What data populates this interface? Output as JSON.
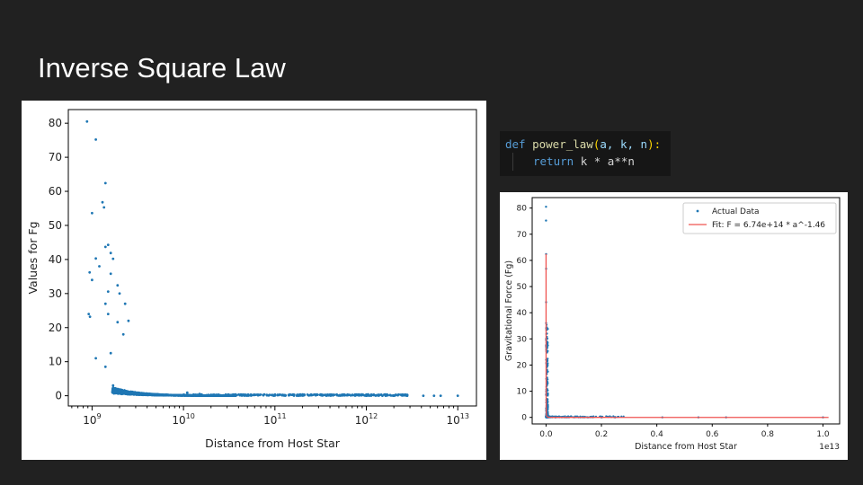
{
  "slide": {
    "title": "Inverse Square Law"
  },
  "code": {
    "def_kw": "def",
    "func_name": "power_law",
    "open_paren": "(",
    "params": "a, k, n",
    "close_colon": "):",
    "return_kw": "return",
    "return_expr": "k * a**n"
  },
  "chart_data": [
    {
      "type": "scatter",
      "xscale": "log",
      "xlabel": "Distance from Host Star",
      "ylabel": "Values for Fg",
      "xlim": [
        550000000.0,
        16000000000000.0
      ],
      "ylim": [
        -3,
        84
      ],
      "xticks": [
        {
          "value": 1000000000.0,
          "base": "10",
          "exp": "9"
        },
        {
          "value": 10000000000.0,
          "base": "10",
          "exp": "10"
        },
        {
          "value": 100000000000.0,
          "base": "10",
          "exp": "11"
        },
        {
          "value": 1000000000000.0,
          "base": "10",
          "exp": "12"
        },
        {
          "value": 10000000000000.0,
          "base": "10",
          "exp": "13"
        }
      ],
      "yticks": [
        "0",
        "10",
        "20",
        "30",
        "40",
        "50",
        "60",
        "70",
        "80"
      ],
      "color": "#1f77b4",
      "points": [
        [
          880000000.0,
          80.5
        ],
        [
          1100000000.0,
          75.2
        ],
        [
          1400000000.0,
          62.4
        ],
        [
          1300000000.0,
          56.8
        ],
        [
          1350000000.0,
          55.3
        ],
        [
          1000000000.0,
          53.6
        ],
        [
          1500000000.0,
          44.3
        ],
        [
          1400000000.0,
          43.7
        ],
        [
          1600000000.0,
          41.9
        ],
        [
          1100000000.0,
          40.3
        ],
        [
          1700000000.0,
          40.2
        ],
        [
          1200000000.0,
          38.0
        ],
        [
          940000000.0,
          36.2
        ],
        [
          1600000000.0,
          35.8
        ],
        [
          1000000000.0,
          34.0
        ],
        [
          1900000000.0,
          32.4
        ],
        [
          2000000000.0,
          30.0
        ],
        [
          1500000000.0,
          30.6
        ],
        [
          2300000000.0,
          27.0
        ],
        [
          1400000000.0,
          27.0
        ],
        [
          920000000.0,
          24.0
        ],
        [
          950000000.0,
          23.2
        ],
        [
          2500000000.0,
          22.0
        ],
        [
          1500000000.0,
          24.0
        ],
        [
          1900000000.0,
          21.6
        ],
        [
          1100000000.0,
          11.0
        ],
        [
          1400000000.0,
          8.5
        ],
        [
          1600000000.0,
          12.5
        ],
        [
          1700000000.0,
          3.0
        ],
        [
          2200000000.0,
          18.0
        ],
        [
          11000000000.0,
          0.9
        ],
        [
          15000000000.0,
          0.5
        ],
        [
          20000000000.0,
          0.3
        ],
        [
          30000000000.0,
          0.2
        ],
        [
          50000000000.0,
          0.1
        ],
        [
          100000000000.0,
          0.05
        ],
        [
          200000000000.0,
          0.03
        ],
        [
          500000000000.0,
          0.02
        ],
        [
          1000000000000.0,
          0.01
        ],
        [
          1500000000000.0,
          0.01
        ],
        [
          2000000000000.0,
          0.005
        ],
        [
          2800000000000.0,
          0.004
        ],
        [
          4200000000000.0,
          0.002
        ],
        [
          5500000000000.0,
          0.002
        ],
        [
          6500000000000.0,
          0.001
        ],
        [
          10000000000000.0,
          0.001
        ]
      ]
    },
    {
      "type": "scatter+line",
      "xlabel": "Distance from Host Star",
      "ylabel": "Gravitational Force (Fg)",
      "x_offset_text": "1e13",
      "xlim": [
        -0.05,
        1.06
      ],
      "ylim": [
        -2.5,
        84
      ],
      "xticks": [
        "0.0",
        "0.2",
        "0.4",
        "0.6",
        "0.8",
        "1.0"
      ],
      "yticks": [
        "0",
        "10",
        "20",
        "30",
        "40",
        "50",
        "60",
        "70",
        "80"
      ],
      "series": [
        {
          "name": "Actual Data",
          "kind": "scatter",
          "color": "#1f77b4",
          "points": [
            [
              0.0001,
              80.5
            ],
            [
              0.0001,
              75.2
            ],
            [
              0.0002,
              62.4
            ],
            [
              0.0002,
              56.8
            ],
            [
              0.0003,
              44.0
            ],
            [
              0.0003,
              36.0
            ],
            [
              0.0004,
              30.0
            ],
            [
              0.0005,
              22.0
            ],
            [
              0.0008,
              10.0
            ],
            [
              0.002,
              3.0
            ],
            [
              0.01,
              0.5
            ],
            [
              0.05,
              0.1
            ],
            [
              0.1,
              0.05
            ],
            [
              0.15,
              0.03
            ],
            [
              0.2,
              0.02
            ],
            [
              0.25,
              0.01
            ],
            [
              0.42,
              0.005
            ],
            [
              0.55,
              0.003
            ],
            [
              0.65,
              0.002
            ],
            [
              1.0,
              0.001
            ]
          ]
        },
        {
          "name": "Fit: F = 6.74e+14 * a^-1.46",
          "kind": "line",
          "color": "#ef5350",
          "k": 674000000000000.0,
          "n": -1.46
        }
      ],
      "legend": "top-right"
    }
  ]
}
